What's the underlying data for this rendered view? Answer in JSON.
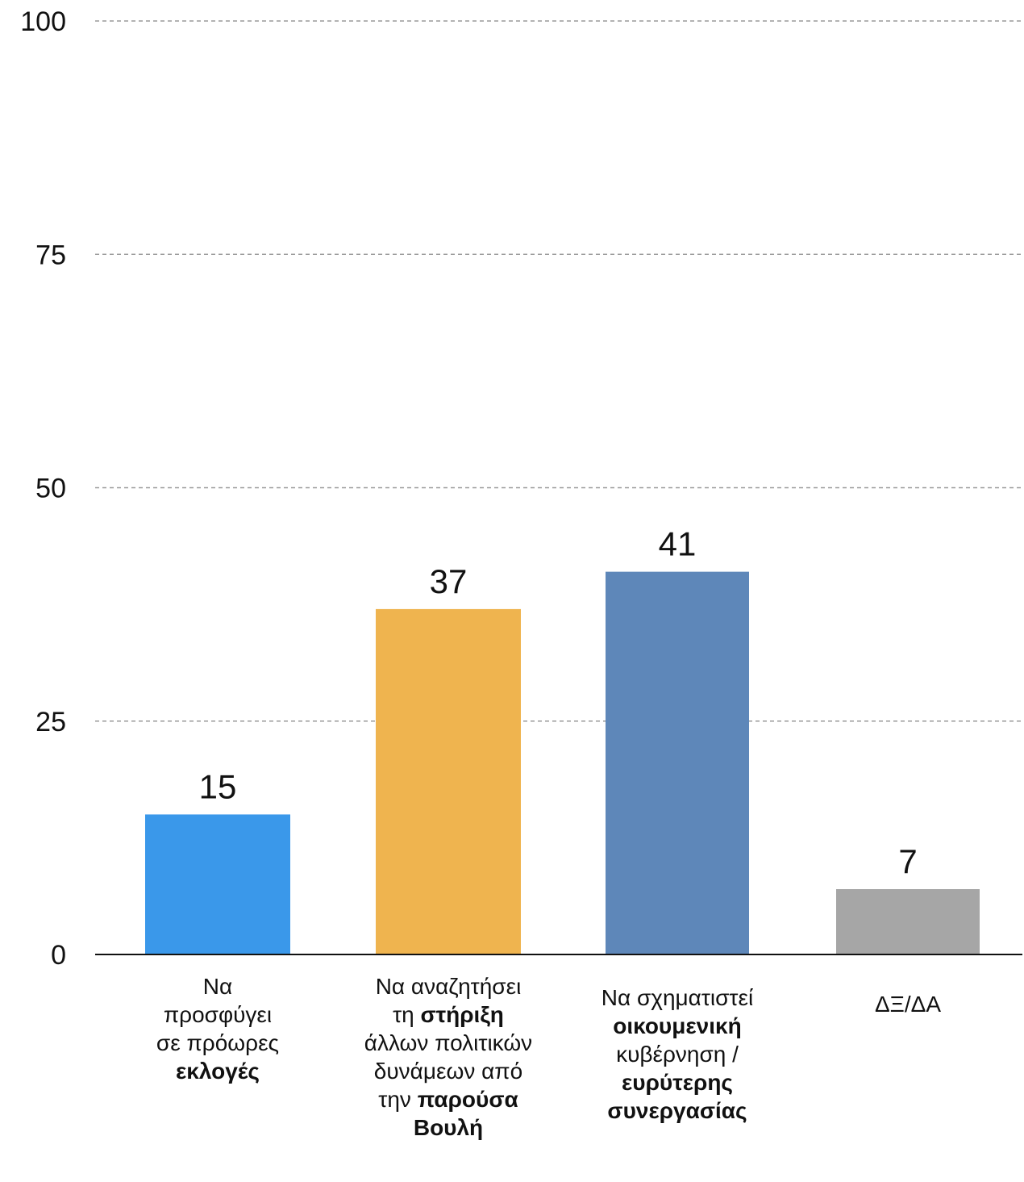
{
  "chart_data": {
    "type": "bar",
    "title": "",
    "xlabel": "",
    "ylabel": "",
    "ylim": [
      0,
      100
    ],
    "yticks": [
      0,
      25,
      50,
      75,
      100
    ],
    "grid": true,
    "values": [
      15,
      37,
      41,
      7
    ],
    "categories": [
      {
        "lines": [
          [
            {
              "t": "Να",
              "b": false
            }
          ],
          [
            {
              "t": "προσφύγει",
              "b": false
            }
          ],
          [
            {
              "t": "σε πρόωρες",
              "b": false
            }
          ],
          [
            {
              "t": "εκλογές",
              "b": true
            }
          ]
        ]
      },
      {
        "lines": [
          [
            {
              "t": "Να αναζητήσει",
              "b": false
            }
          ],
          [
            {
              "t": "τη ",
              "b": false
            },
            {
              "t": "στήριξη",
              "b": true
            }
          ],
          [
            {
              "t": "άλλων πολιτικών",
              "b": false
            }
          ],
          [
            {
              "t": "δυνάμεων από",
              "b": false
            }
          ],
          [
            {
              "t": "την ",
              "b": false
            },
            {
              "t": "παρούσα",
              "b": true
            }
          ],
          [
            {
              "t": "Βουλή",
              "b": true
            }
          ]
        ]
      },
      {
        "lines": [
          [
            {
              "t": "Να σχηματιστεί",
              "b": false
            }
          ],
          [
            {
              "t": "οικουμενική",
              "b": true
            }
          ],
          [
            {
              "t": "κυβέρνηση /",
              "b": false
            }
          ],
          [
            {
              "t": "ευρύτερης",
              "b": true
            }
          ],
          [
            {
              "t": "συνεργασίας",
              "b": true
            }
          ]
        ]
      },
      {
        "lines": [
          [
            {
              "t": "ΔΞ/ΔΑ",
              "b": false
            }
          ]
        ]
      }
    ],
    "colors": [
      "#3a98ea",
      "#efb44f",
      "#5e87b9",
      "#a6a6a6"
    ],
    "grid_color": "#9a9a9a",
    "axis_color": "#111111"
  }
}
